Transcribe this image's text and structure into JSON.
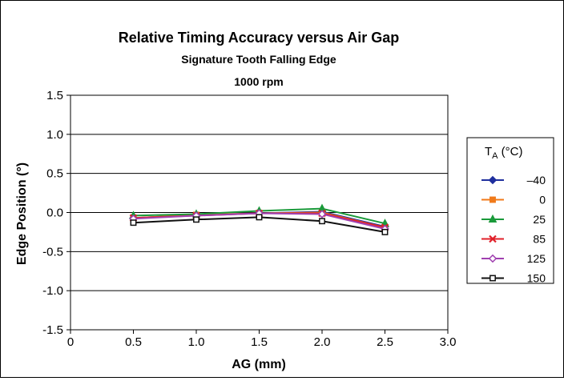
{
  "chart_data": {
    "type": "line",
    "title": "Relative Timing Accuracy versus Air Gap",
    "subtitle": "Signature Tooth Falling Edge",
    "subtitle2": "1000 rpm",
    "xlabel": "AG (mm)",
    "ylabel": "Edge Position (°)",
    "xlim": [
      0,
      3.0
    ],
    "ylim": [
      -1.5,
      1.5
    ],
    "x_ticks": [
      "0",
      "0.5",
      "1.0",
      "1.5",
      "2.0",
      "2.5",
      "3.0"
    ],
    "y_ticks": [
      "1.5",
      "1.0",
      "0.5",
      "0.0",
      "-0.5",
      "-1.0",
      "-1.5"
    ],
    "grid": "horizontal",
    "legend": {
      "title_main": "T",
      "title_sub": "A",
      "title_unit": " (°C)",
      "placement": "right"
    },
    "x": [
      0.5,
      1.0,
      1.5,
      2.0,
      2.5
    ],
    "series": [
      {
        "name": "–40",
        "color": "#1f2f9e",
        "marker": "diamond",
        "values": [
          -0.07,
          -0.03,
          -0.01,
          0.01,
          -0.18
        ]
      },
      {
        "name": "0",
        "color": "#f07a1a",
        "marker": "square",
        "values": [
          -0.07,
          -0.03,
          -0.01,
          0.0,
          -0.19
        ]
      },
      {
        "name": "25",
        "color": "#1a9a3a",
        "marker": "triangle",
        "values": [
          -0.04,
          -0.02,
          0.02,
          0.05,
          -0.14
        ]
      },
      {
        "name": "85",
        "color": "#e0202a",
        "marker": "x",
        "values": [
          -0.07,
          -0.04,
          -0.01,
          -0.01,
          -0.19
        ]
      },
      {
        "name": "125",
        "color": "#a040b0",
        "marker": "diamond-open",
        "values": [
          -0.08,
          -0.04,
          -0.01,
          -0.02,
          -0.21
        ]
      },
      {
        "name": "150",
        "color": "#111111",
        "marker": "square-open",
        "values": [
          -0.13,
          -0.09,
          -0.06,
          -0.11,
          -0.25
        ]
      }
    ]
  }
}
